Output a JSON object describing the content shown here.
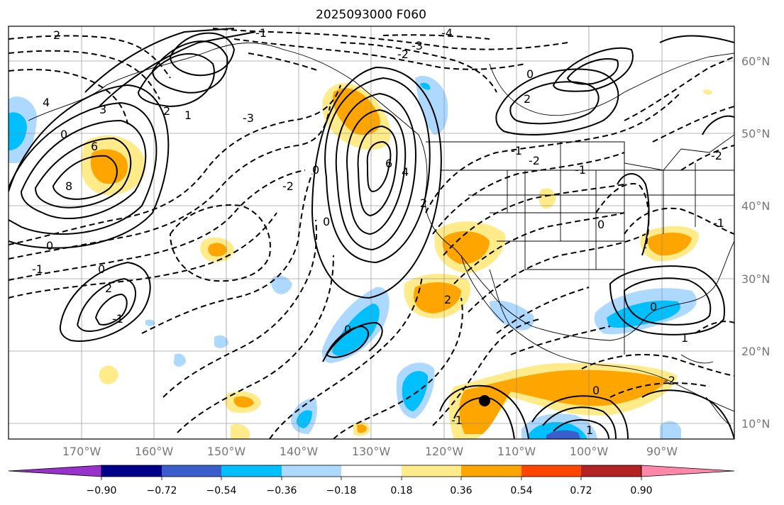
{
  "title": "2025093000 F060",
  "map": {
    "lon_range": [
      -180,
      -80
    ],
    "lat_range": [
      7.5,
      65
    ],
    "lat_ticks": [
      "60°N",
      "50°N",
      "40°N",
      "30°N",
      "20°N",
      "10°N"
    ],
    "lon_ticks": [
      "170°W",
      "160°W",
      "150°W",
      "140°W",
      "130°W",
      "120°W",
      "110°W",
      "100°W",
      "90°W"
    ],
    "grid": true,
    "contour_labels": [
      "2",
      "4",
      "3",
      "0",
      "6",
      "8",
      "-3",
      "-4",
      "-2",
      "-1",
      "1",
      "2",
      "0",
      "-1",
      "0",
      "2",
      "-1",
      "0",
      "-2",
      "-3",
      "0",
      "6",
      "4",
      "2",
      "-2",
      "-1",
      "0",
      "2",
      "-1",
      "0",
      "1",
      "-1",
      "0",
      "-2",
      "0",
      "-2",
      "1",
      "2",
      "-1",
      "0"
    ],
    "marker": {
      "name": "storm-center",
      "lon": -114.5,
      "lat": 13
    }
  },
  "colorbar": {
    "ticks": [
      "−0.90",
      "−0.72",
      "−0.54",
      "−0.36",
      "−0.18",
      "0.18",
      "0.36",
      "0.54",
      "0.72",
      "0.90"
    ],
    "colors": [
      "#9932cc",
      "#00008b",
      "#3a5fcd",
      "#00bfff",
      "#add8ff",
      "#ffffff",
      "#ffeb8a",
      "#ffa500",
      "#ff4500",
      "#b22222",
      "#ff88aa"
    ]
  }
}
